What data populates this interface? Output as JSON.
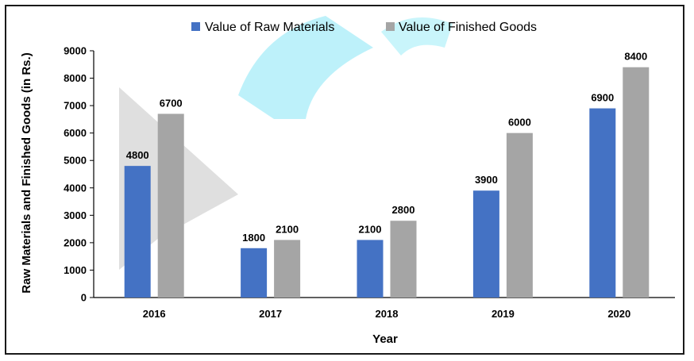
{
  "chart_data": {
    "type": "bar",
    "categories": [
      "2016",
      "2017",
      "2018",
      "2019",
      "2020"
    ],
    "series": [
      {
        "name": "Value of Raw Materials",
        "values": [
          4800,
          1800,
          2100,
          3900,
          6900
        ],
        "color": "#4472C4"
      },
      {
        "name": "Value of Finished Goods",
        "values": [
          6700,
          2100,
          2800,
          6000,
          8400
        ],
        "color": "#A5A5A5"
      }
    ],
    "xlabel": "Year",
    "ylabel": "Raw Materials and Finished Goods (in Rs.)",
    "ylim": [
      0,
      9000
    ],
    "yticks": [
      0,
      1000,
      2000,
      3000,
      4000,
      5000,
      6000,
      7000,
      8000,
      9000
    ],
    "grid": false,
    "legend_position": "top",
    "watermark_color": "#40D8F0"
  }
}
